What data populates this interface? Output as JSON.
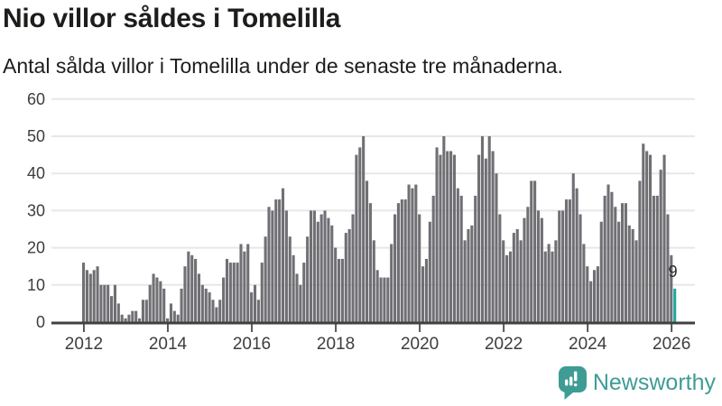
{
  "header": {
    "title": "Nio villor såldes i Tomelilla",
    "subtitle": "Antal sålda villor i Tomelilla under de senaste tre månaderna."
  },
  "chart_data": {
    "type": "bar",
    "title": "Nio villor såldes i Tomelilla",
    "subtitle": "Antal sålda villor i Tomelilla under de senaste tre månaderna.",
    "frequency": "monthly",
    "x_start": "2012-01",
    "x_end": "2026-02",
    "values": [
      16,
      14,
      13,
      14,
      15,
      10,
      10,
      10,
      7,
      10,
      5,
      2,
      1,
      2,
      3,
      3,
      1,
      6,
      6,
      10,
      13,
      12,
      11,
      9,
      1,
      5,
      3,
      2,
      9,
      15,
      19,
      18,
      17,
      13,
      10,
      9,
      8,
      6,
      4,
      6,
      12,
      17,
      16,
      16,
      16,
      21,
      19,
      21,
      8,
      10,
      6,
      16,
      23,
      31,
      30,
      33,
      33,
      36,
      30,
      23,
      18,
      13,
      10,
      16,
      23,
      30,
      30,
      27,
      29,
      30,
      28,
      26,
      20,
      17,
      17,
      24,
      25,
      29,
      45,
      47,
      50,
      38,
      32,
      22,
      14,
      12,
      12,
      12,
      21,
      29,
      32,
      33,
      33,
      37,
      36,
      37,
      29,
      15,
      17,
      27,
      34,
      47,
      45,
      50,
      46,
      46,
      45,
      36,
      34,
      22,
      25,
      26,
      34,
      45,
      50,
      44,
      50,
      46,
      40,
      29,
      22,
      18,
      19,
      24,
      25,
      22,
      28,
      31,
      38,
      38,
      30,
      28,
      19,
      21,
      19,
      22,
      30,
      30,
      33,
      33,
      40,
      36,
      29,
      21,
      15,
      11,
      14,
      15,
      27,
      34,
      37,
      35,
      31,
      27,
      32,
      32,
      26,
      25,
      22,
      38,
      48,
      46,
      45,
      34,
      34,
      41,
      45,
      29,
      18,
      9
    ],
    "highlight_last": true,
    "last_value_label": "9",
    "ylim": [
      0,
      60
    ],
    "yticks": [
      0,
      10,
      20,
      30,
      40,
      50,
      60
    ],
    "xticks": [
      2012,
      2014,
      2016,
      2018,
      2020,
      2022,
      2024,
      2026
    ],
    "grid": "horizontal",
    "legend": "none",
    "bar_color": "#706f74",
    "highlight_color": "#1fa8a0",
    "grid_color": "#e7e7e7",
    "axis_color": "#404040",
    "tick_label_color": "#3d3d3d"
  },
  "annotation": {
    "last_bar_label": "9"
  },
  "footer": {
    "brand": "Newsworthy"
  }
}
